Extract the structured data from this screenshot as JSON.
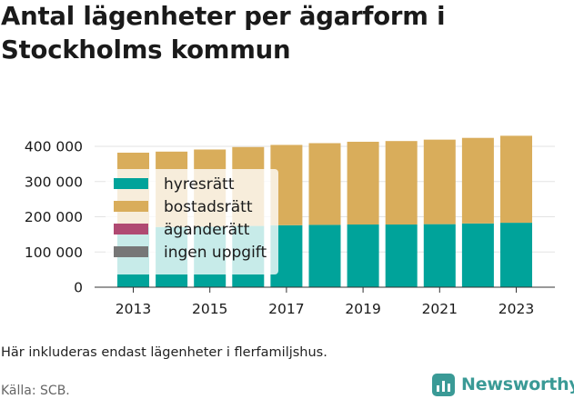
{
  "title_lines": [
    "Antal lägenheter per ägarform i",
    "Stockholms kommun"
  ],
  "note": "Här inkluderas endast lägenheter i flerfamiljshus.",
  "source": "Källa: SCB.",
  "brand": {
    "name": "Newsworthy",
    "icon": "bar-chart-icon",
    "color": "#3a9a96"
  },
  "chart_data": {
    "type": "bar",
    "stacked": true,
    "categories": [
      "2013",
      "2014",
      "2015",
      "2016",
      "2017",
      "2018",
      "2019",
      "2020",
      "2021",
      "2022",
      "2023"
    ],
    "x_tick_labels": [
      "2013",
      "2015",
      "2017",
      "2019",
      "2021",
      "2023"
    ],
    "y_tick_labels": [
      "0",
      "100 000",
      "200 000",
      "300 000",
      "400 000"
    ],
    "ylim": [
      0,
      430000
    ],
    "grid": true,
    "legend_position": "left-inside",
    "series": [
      {
        "name": "hyresrätt",
        "color": "#00a39a",
        "values": [
          170000,
          171000,
          172000,
          174000,
          176000,
          177000,
          178000,
          178000,
          179000,
          181000,
          183000
        ]
      },
      {
        "name": "bostadsrätt",
        "color": "#d9ad5b",
        "values": [
          212000,
          214000,
          219000,
          224000,
          228000,
          232000,
          235000,
          237000,
          240000,
          243000,
          247000
        ]
      },
      {
        "name": "äganderätt",
        "color": "#b04a72",
        "values": [
          0,
          0,
          0,
          0,
          0,
          0,
          0,
          0,
          0,
          0,
          0
        ]
      },
      {
        "name": "ingen uppgift",
        "color": "#777777",
        "values": [
          0,
          0,
          0,
          0,
          0,
          0,
          0,
          0,
          0,
          0,
          0
        ]
      }
    ]
  }
}
